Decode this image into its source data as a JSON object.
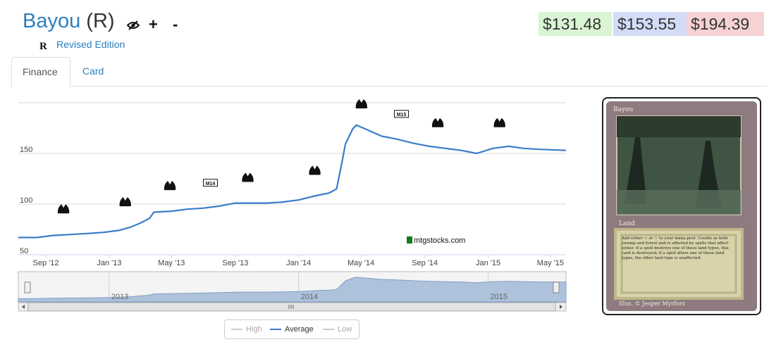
{
  "header": {
    "card_name": "Bayou",
    "rarity": "(R)",
    "set_symbol": "R",
    "set_name": "Revised Edition",
    "icons": {
      "hide": "eye-slash-icon",
      "add": "+",
      "remove": "-"
    }
  },
  "prices": {
    "low": "$131.48",
    "average": "$153.55",
    "high": "$194.39"
  },
  "colors": {
    "low_bg": "#d9f5d3",
    "avg_bg": "#d3dcf7",
    "high_bg": "#f7d2d2",
    "line": "#3a7dc8",
    "link": "#2a7fbf"
  },
  "tabs": [
    {
      "label": "Finance",
      "active": true
    },
    {
      "label": "Card",
      "active": false
    }
  ],
  "watermark": "mtgstocks.com",
  "legend": [
    {
      "label": "High",
      "active": false
    },
    {
      "label": "Average",
      "active": true
    },
    {
      "label": "Low",
      "active": false
    }
  ],
  "chart_data": {
    "type": "line",
    "ylim": [
      50,
      200
    ],
    "y_ticks": [
      50,
      100,
      150
    ],
    "x_start": "2012-07-10",
    "x_end": "2015-05-31",
    "x_ticks": [
      {
        "date": "2012-09-01",
        "label": "Sep '12"
      },
      {
        "date": "2013-01-01",
        "label": "Jan '13"
      },
      {
        "date": "2013-05-01",
        "label": "May '13"
      },
      {
        "date": "2013-09-01",
        "label": "Sep '13"
      },
      {
        "date": "2014-01-01",
        "label": "Jan '14"
      },
      {
        "date": "2014-05-01",
        "label": "May '14"
      },
      {
        "date": "2014-09-01",
        "label": "Sep '14"
      },
      {
        "date": "2015-01-01",
        "label": "Jan '15"
      },
      {
        "date": "2015-05-01",
        "label": "May '15"
      }
    ],
    "navigator_labels": [
      {
        "date": "2013-01-01",
        "label": "2013"
      },
      {
        "date": "2014-01-01",
        "label": "2014"
      },
      {
        "date": "2015-01-01",
        "label": "2015"
      }
    ],
    "series": [
      {
        "name": "Average",
        "points": [
          [
            "2012-07-10",
            67
          ],
          [
            "2012-08-15",
            67
          ],
          [
            "2012-09-15",
            69
          ],
          [
            "2012-10-20",
            70
          ],
          [
            "2012-11-20",
            71
          ],
          [
            "2012-12-20",
            72
          ],
          [
            "2013-01-20",
            74
          ],
          [
            "2013-02-10",
            77
          ],
          [
            "2013-03-01",
            81
          ],
          [
            "2013-03-20",
            86
          ],
          [
            "2013-03-28",
            92
          ],
          [
            "2013-05-01",
            93
          ],
          [
            "2013-06-01",
            95
          ],
          [
            "2013-07-01",
            96
          ],
          [
            "2013-08-01",
            98
          ],
          [
            "2013-09-01",
            101
          ],
          [
            "2013-10-01",
            101
          ],
          [
            "2013-11-01",
            101
          ],
          [
            "2013-12-01",
            102
          ],
          [
            "2014-01-01",
            104
          ],
          [
            "2014-02-01",
            108
          ],
          [
            "2014-03-01",
            111
          ],
          [
            "2014-03-15",
            115
          ],
          [
            "2014-03-25",
            140
          ],
          [
            "2014-04-01",
            159
          ],
          [
            "2014-04-15",
            174
          ],
          [
            "2014-04-22",
            178
          ],
          [
            "2014-05-10",
            174
          ],
          [
            "2014-06-10",
            167
          ],
          [
            "2014-07-10",
            164
          ],
          [
            "2014-08-10",
            160
          ],
          [
            "2014-09-10",
            157
          ],
          [
            "2014-10-10",
            155
          ],
          [
            "2014-11-10",
            153
          ],
          [
            "2014-12-10",
            150
          ],
          [
            "2015-01-10",
            155
          ],
          [
            "2015-02-10",
            157
          ],
          [
            "2015-03-10",
            155
          ],
          [
            "2015-04-10",
            154
          ],
          [
            "2015-05-31",
            153
          ]
        ]
      }
    ],
    "set_markers": [
      {
        "date": "2012-10-05",
        "icon": "return-to-ravnica-set-icon"
      },
      {
        "date": "2013-02-01",
        "icon": "gatecrash-set-icon"
      },
      {
        "date": "2013-04-28",
        "icon": "dragons-maze-set-icon"
      },
      {
        "date": "2013-07-15",
        "icon": "magic-2014-set-icon",
        "text": "M14"
      },
      {
        "date": "2013-09-25",
        "icon": "theros-set-icon"
      },
      {
        "date": "2014-02-01",
        "icon": "born-of-the-gods-set-icon"
      },
      {
        "date": "2014-05-02",
        "icon": "journey-into-nyx-set-icon"
      },
      {
        "date": "2014-07-18",
        "icon": "magic-2015-set-icon",
        "text": "M15"
      },
      {
        "date": "2014-09-26",
        "icon": "khans-of-tarkir-set-icon"
      },
      {
        "date": "2015-01-23",
        "icon": "fate-reforged-set-icon"
      }
    ]
  },
  "card": {
    "name": "Bayou",
    "type": "Land",
    "rules_text": "Add either ☆ or ☆ to your mana pool. Counts as both swamp and forest and is affected by spells that affect either. If a spell destroys one of these land types, this card is destroyed; if a spell alters one of these land types, the other land type is unaffected.",
    "artist": "Illus. © Jesper Myrfors"
  }
}
